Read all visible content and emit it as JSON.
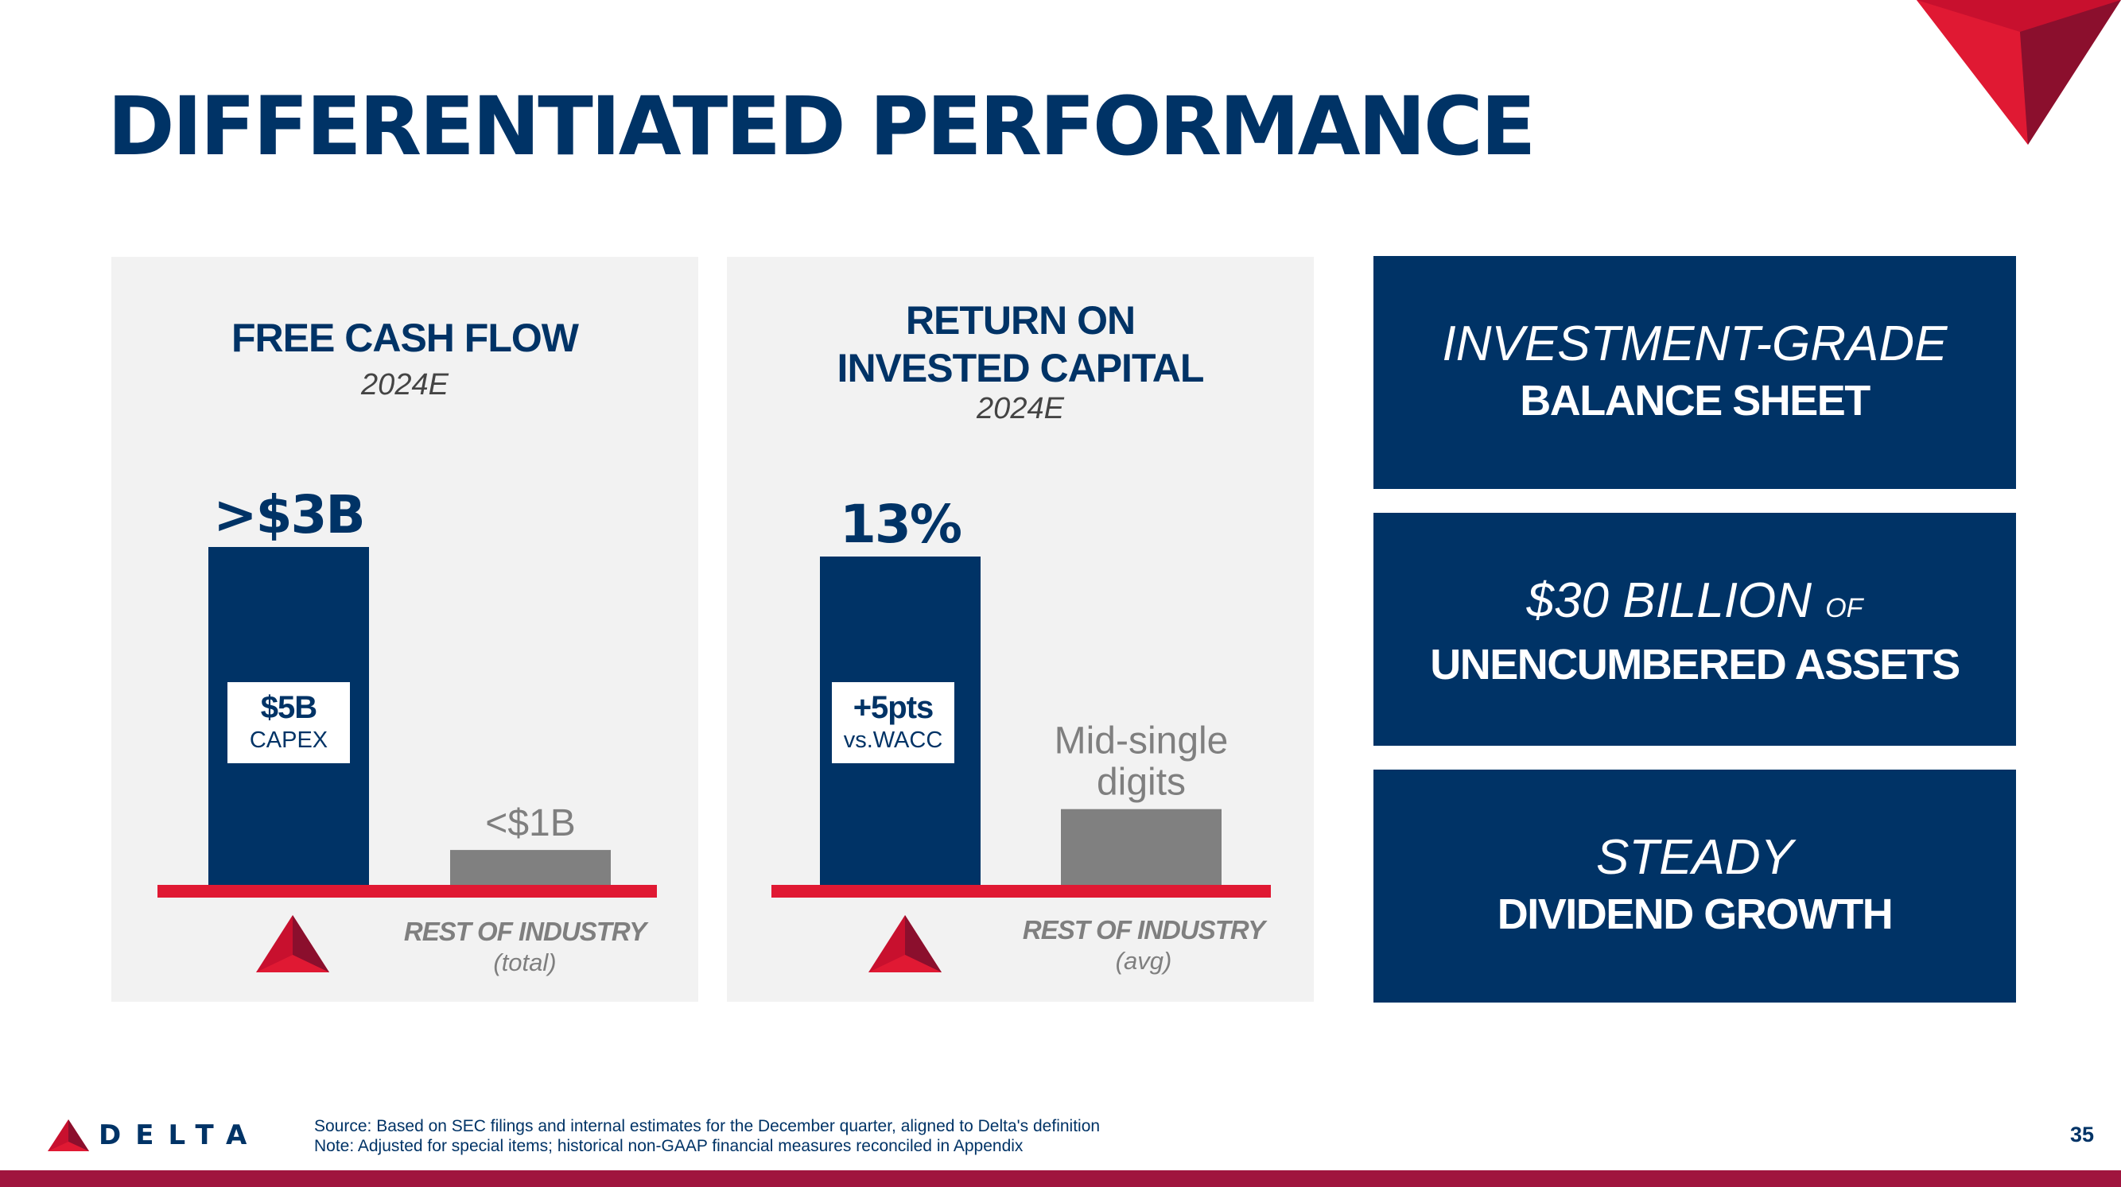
{
  "page": {
    "title": "DIFFERENTIATED PERFORMANCE",
    "page_number": "35"
  },
  "colors": {
    "navy": "#003366",
    "gray_bar": "#808080",
    "red_baseline": "#e01933",
    "footer_bar": "#a0153e"
  },
  "chart_data": [
    {
      "type": "bar",
      "title": "FREE CASH FLOW",
      "subtitle": "2024E",
      "categories": [
        "Delta",
        "REST OF INDUSTRY"
      ],
      "values": [
        3,
        1
      ],
      "value_labels": [
        ">$3B",
        "<$1B"
      ],
      "category_sublabels": [
        "",
        "(total)"
      ],
      "bar_colors": [
        "#003366",
        "#808080"
      ],
      "inset": {
        "value": "$5B",
        "label": "CAPEX"
      }
    },
    {
      "type": "bar",
      "title": "RETURN ON INVESTED CAPITAL",
      "title_lines": [
        "RETURN ON",
        "INVESTED CAPITAL"
      ],
      "subtitle": "2024E",
      "categories": [
        "Delta",
        "REST OF INDUSTRY"
      ],
      "values": [
        13,
        6
      ],
      "value_labels": [
        "13%",
        "Mid-single digits"
      ],
      "value_label_lines": [
        [
          "13%"
        ],
        [
          "Mid-single",
          "digits"
        ]
      ],
      "category_sublabels": [
        "",
        "(avg)"
      ],
      "bar_colors": [
        "#003366",
        "#808080"
      ],
      "inset": {
        "value": "+5pts",
        "label": "vs.WACC"
      }
    }
  ],
  "highlights": [
    {
      "line1": "INVESTMENT-GRADE",
      "line2": "BALANCE SHEET"
    },
    {
      "line1": "$30 BILLION",
      "line1_suffix": "OF",
      "line2": "UNENCUMBERED ASSETS"
    },
    {
      "line1": "STEADY",
      "line2": "DIVIDEND GROWTH"
    }
  ],
  "footer": {
    "logo_text": "DELTA",
    "source": "Source: Based on SEC filings and internal estimates for the December quarter, aligned to Delta's definition",
    "note": "Note: Adjusted for special items; historical non-GAAP financial measures reconciled in Appendix"
  }
}
